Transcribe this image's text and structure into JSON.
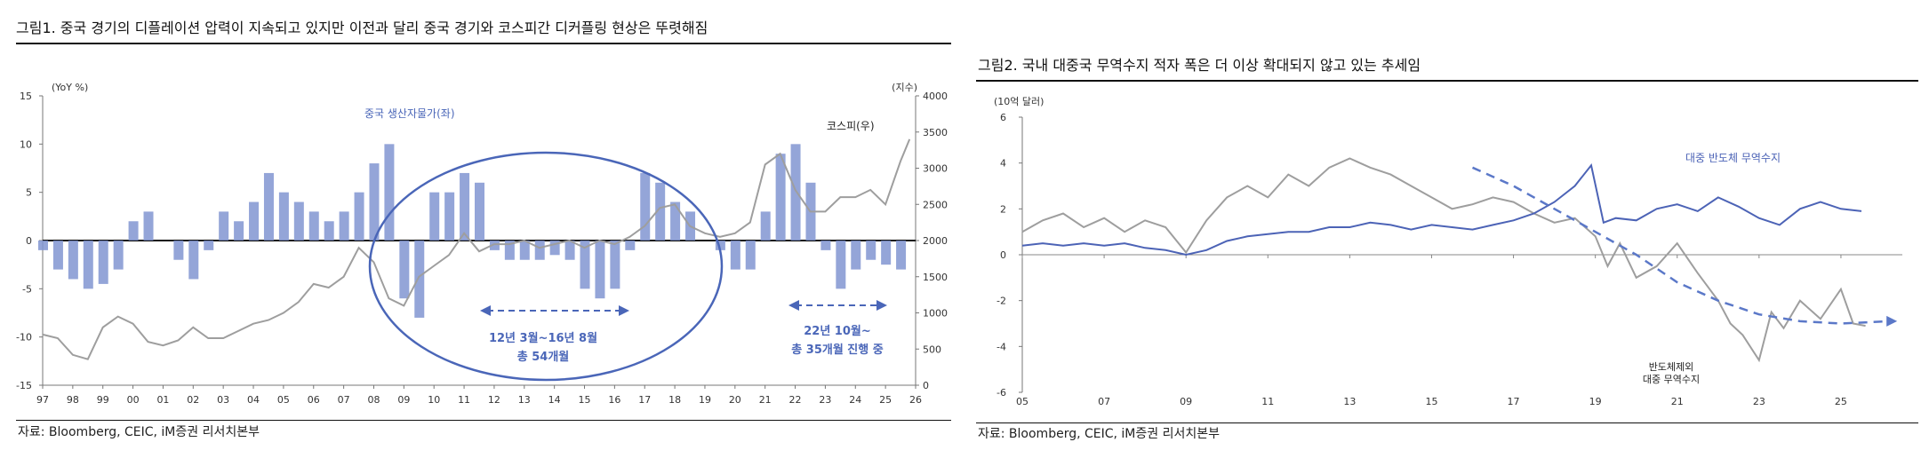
{
  "figure1": {
    "title": "그림1.   중국 경기의 디플레이션 압력이 지속되고 있지만 이전과 달리 중국 경기와 코스피간 디커플링 현상은 뚜렷해짐",
    "source": "자료: Bloomberg, CEIC, iM증권 리서치본부",
    "colors": {
      "bars": "#8195d1",
      "kospi": "#9e9e9e",
      "annot": "#4a66b8"
    },
    "annotations": {
      "ppi_label": "중국 생산자물가(좌)",
      "kospi_label": "코스피(우)",
      "period1_line1": "12년 3월~16년 8월",
      "period1_line2": "총 54개월",
      "period2_line1": "22년 10월~",
      "period2_line2": "총 35개월 진행 중"
    }
  },
  "figure2": {
    "title": "그림2.   국내 대중국 무역수지 적자 폭은 더 이상 확대되지 않고 있는 추세임",
    "source": "자료: Bloomberg, CEIC, iM증권 리서치본부",
    "colors": {
      "semi": "#4c63b6",
      "ex_semi": "#9e9e9e",
      "trend": "#5b78c8"
    },
    "annotations": {
      "semi_label": "대중 반도체 무역수지",
      "ex_semi_line1": "반도체제외",
      "ex_semi_line2": "대중 무역수지"
    }
  },
  "chart_data": [
    {
      "type": "bar",
      "title": "그림1.   중국 경기의 디플레이션 압력이 지속되고 있지만 이전과 달리 중국 경기와 코스피간 디커플링 현상은 뚜렷해짐",
      "ylabel_left": "(YoY %)",
      "ylabel_right": "(지수)",
      "ylim_left": [
        -15,
        15
      ],
      "yticks_left": [
        15,
        10,
        5,
        0,
        -5,
        -10,
        -15
      ],
      "ylim_right": [
        0,
        4000
      ],
      "yticks_right": [
        4000,
        3500,
        3000,
        2500,
        2000,
        1500,
        1000,
        500,
        0
      ],
      "x_tick_labels": [
        "97",
        "98",
        "99",
        "00",
        "01",
        "02",
        "03",
        "04",
        "05",
        "06",
        "07",
        "08",
        "09",
        "10",
        "11",
        "12",
        "13",
        "14",
        "15",
        "16",
        "17",
        "18",
        "19",
        "20",
        "21",
        "22",
        "23",
        "24",
        "25",
        "26"
      ],
      "xlim": [
        1997,
        2026
      ],
      "series": [
        {
          "name": "중국 생산자물가(좌)",
          "kind": "bar",
          "axis": "left",
          "x": [
            1997.0,
            1997.5,
            1998.0,
            1998.5,
            1999.0,
            1999.5,
            2000.0,
            2000.5,
            2001.0,
            2001.5,
            2002.0,
            2002.5,
            2003.0,
            2003.5,
            2004.0,
            2004.5,
            2005.0,
            2005.5,
            2006.0,
            2006.5,
            2007.0,
            2007.5,
            2008.0,
            2008.5,
            2009.0,
            2009.5,
            2010.0,
            2010.5,
            2011.0,
            2011.5,
            2012.0,
            2012.5,
            2013.0,
            2013.5,
            2014.0,
            2014.5,
            2015.0,
            2015.5,
            2016.0,
            2016.5,
            2017.0,
            2017.5,
            2018.0,
            2018.5,
            2019.0,
            2019.5,
            2020.0,
            2020.5,
            2021.0,
            2021.5,
            2022.0,
            2022.5,
            2023.0,
            2023.5,
            2024.0,
            2024.5,
            2025.0,
            2025.5
          ],
          "values": [
            -1,
            -3,
            -4,
            -5,
            -4.5,
            -3,
            2,
            3,
            0,
            -2,
            -4,
            -1,
            3,
            2,
            4,
            7,
            5,
            4,
            3,
            2,
            3,
            5,
            8,
            10,
            -6,
            -8,
            5,
            5,
            7,
            6,
            -1,
            -2,
            -2,
            -2,
            -1.5,
            -2,
            -5,
            -6,
            -5,
            -1,
            7,
            6,
            4,
            3,
            0,
            -1,
            -3,
            -3,
            3,
            9,
            10,
            6,
            -1,
            -5,
            -3,
            -2,
            -2.5,
            -3
          ]
        },
        {
          "name": "코스피(우)",
          "kind": "line",
          "axis": "right",
          "x": [
            1997.0,
            1997.5,
            1998.0,
            1998.5,
            1999.0,
            1999.5,
            2000.0,
            2000.5,
            2001.0,
            2001.5,
            2002.0,
            2002.5,
            2003.0,
            2003.5,
            2004.0,
            2004.5,
            2005.0,
            2005.5,
            2006.0,
            2006.5,
            2007.0,
            2007.5,
            2008.0,
            2008.5,
            2009.0,
            2009.5,
            2010.0,
            2010.5,
            2011.0,
            2011.5,
            2012.0,
            2012.5,
            2013.0,
            2013.5,
            2014.0,
            2014.5,
            2015.0,
            2015.5,
            2016.0,
            2016.5,
            2017.0,
            2017.5,
            2018.0,
            2018.5,
            2019.0,
            2019.5,
            2020.0,
            2020.5,
            2021.0,
            2021.5,
            2022.0,
            2022.5,
            2023.0,
            2023.5,
            2024.0,
            2024.5,
            2025.0,
            2025.5,
            2025.8
          ],
          "values": [
            700,
            650,
            420,
            360,
            800,
            950,
            850,
            600,
            550,
            620,
            800,
            650,
            650,
            750,
            850,
            900,
            1000,
            1150,
            1400,
            1350,
            1500,
            1900,
            1700,
            1200,
            1100,
            1500,
            1650,
            1800,
            2100,
            1850,
            1950,
            1950,
            2000,
            1900,
            1950,
            2000,
            1900,
            2000,
            1950,
            2050,
            2200,
            2450,
            2500,
            2200,
            2100,
            2050,
            2100,
            2250,
            3050,
            3200,
            2700,
            2400,
            2400,
            2600,
            2600,
            2700,
            2500,
            3100,
            3400
          ]
        }
      ],
      "grid": false,
      "annotations": [
        "중국 생산자물가(좌)",
        "코스피(우)",
        "12년 3월~16년 8월",
        "총 54개월",
        "22년 10월~",
        "총 35개월 진행 중"
      ]
    },
    {
      "type": "line",
      "title": "그림2.   국내 대중국 무역수지 적자 폭은 더 이상 확대되지 않고 있는 추세임",
      "ylabel": "(10억 달러)",
      "ylim": [
        -6,
        6
      ],
      "yticks": [
        6,
        4,
        2,
        0,
        -2,
        -4,
        -6
      ],
      "xlim": [
        2005,
        2026.5
      ],
      "x_tick_labels": [
        "05",
        "07",
        "09",
        "11",
        "13",
        "15",
        "17",
        "19",
        "21",
        "23",
        "25"
      ],
      "x_tick_values": [
        2005,
        2007,
        2009,
        2011,
        2013,
        2015,
        2017,
        2019,
        2021,
        2023,
        2025
      ],
      "series": [
        {
          "name": "대중 반도체 무역수지",
          "x": [
            2005.0,
            2005.5,
            2006.0,
            2006.5,
            2007.0,
            2007.5,
            2008.0,
            2008.5,
            2009.0,
            2009.5,
            2010.0,
            2010.5,
            2011.0,
            2011.5,
            2012.0,
            2012.5,
            2013.0,
            2013.5,
            2014.0,
            2014.5,
            2015.0,
            2015.5,
            2016.0,
            2016.5,
            2017.0,
            2017.5,
            2018.0,
            2018.5,
            2018.9,
            2019.2,
            2019.5,
            2020.0,
            2020.5,
            2021.0,
            2021.5,
            2022.0,
            2022.5,
            2023.0,
            2023.5,
            2024.0,
            2024.5,
            2025.0,
            2025.5
          ],
          "values": [
            0.4,
            0.5,
            0.4,
            0.5,
            0.4,
            0.5,
            0.3,
            0.2,
            0.0,
            0.2,
            0.6,
            0.8,
            0.9,
            1.0,
            1.0,
            1.2,
            1.2,
            1.4,
            1.3,
            1.1,
            1.3,
            1.2,
            1.1,
            1.3,
            1.5,
            1.8,
            2.3,
            3.0,
            3.9,
            1.4,
            1.6,
            1.5,
            2.0,
            2.2,
            1.9,
            2.5,
            2.1,
            1.6,
            1.3,
            2.0,
            2.3,
            2.0,
            1.9
          ]
        },
        {
          "name": "반도체제외 대중 무역수지",
          "x": [
            2005.0,
            2005.5,
            2006.0,
            2006.5,
            2007.0,
            2007.5,
            2008.0,
            2008.5,
            2009.0,
            2009.5,
            2010.0,
            2010.5,
            2011.0,
            2011.5,
            2012.0,
            2012.5,
            2013.0,
            2013.5,
            2014.0,
            2014.5,
            2015.0,
            2015.5,
            2016.0,
            2016.5,
            2017.0,
            2017.5,
            2018.0,
            2018.5,
            2019.0,
            2019.3,
            2019.6,
            2020.0,
            2020.5,
            2021.0,
            2021.5,
            2022.0,
            2022.3,
            2022.6,
            2023.0,
            2023.3,
            2023.6,
            2024.0,
            2024.5,
            2025.0,
            2025.3,
            2025.6
          ],
          "values": [
            1.0,
            1.5,
            1.8,
            1.2,
            1.6,
            1.0,
            1.5,
            1.2,
            0.1,
            1.5,
            2.5,
            3.0,
            2.5,
            3.5,
            3.0,
            3.8,
            4.2,
            3.8,
            3.5,
            3.0,
            2.5,
            2.0,
            2.2,
            2.5,
            2.3,
            1.8,
            1.4,
            1.6,
            0.8,
            -0.5,
            0.5,
            -1.0,
            -0.5,
            0.5,
            -0.8,
            -2.0,
            -3.0,
            -3.5,
            -4.6,
            -2.5,
            -3.2,
            -2.0,
            -2.8,
            -1.5,
            -3.0,
            -3.1
          ]
        },
        {
          "name": "",
          "style": "dashed-trend",
          "x": [
            2016.0,
            2017.0,
            2018.0,
            2019.0,
            2020.0,
            2021.0,
            2022.0,
            2023.0,
            2024.0,
            2025.0,
            2026.2
          ],
          "values": [
            3.8,
            3.0,
            2.0,
            1.0,
            0.0,
            -1.2,
            -2.0,
            -2.6,
            -2.9,
            -3.0,
            -2.9
          ]
        }
      ],
      "grid": false,
      "annotations": [
        "대중 반도체 무역수지",
        "반도체제외",
        "대중 무역수지"
      ]
    }
  ]
}
